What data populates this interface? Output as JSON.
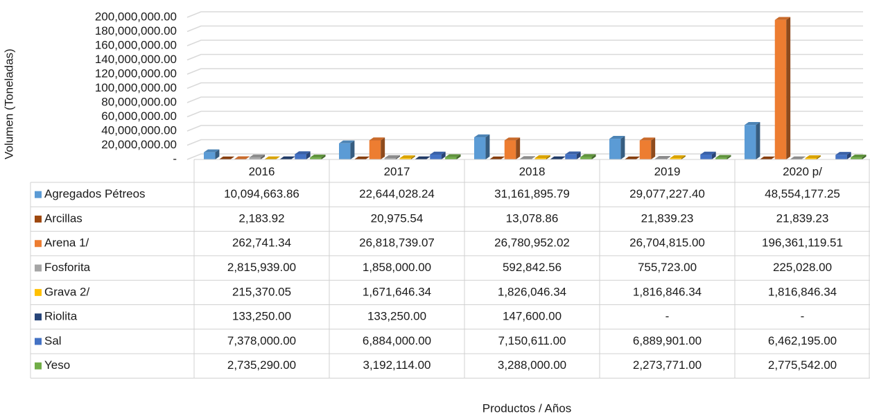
{
  "chart_data": {
    "type": "bar3d",
    "y_axis_label": "Volumen (Toneladas)",
    "x_axis_label": "Productos / Años",
    "categories": [
      "2016",
      "2017",
      "2018",
      "2019",
      "2020 p/"
    ],
    "ylim": [
      0,
      200000000
    ],
    "yticks": [
      {
        "value": 0,
        "label": "-"
      },
      {
        "value": 20000000,
        "label": "20,000,000.00"
      },
      {
        "value": 40000000,
        "label": "40,000,000.00"
      },
      {
        "value": 60000000,
        "label": "60,000,000.00"
      },
      {
        "value": 80000000,
        "label": "80,000,000.00"
      },
      {
        "value": 100000000,
        "label": "100,000,000.00"
      },
      {
        "value": 120000000,
        "label": "120,000,000.00"
      },
      {
        "value": 140000000,
        "label": "140,000,000.00"
      },
      {
        "value": 160000000,
        "label": "160,000,000.00"
      },
      {
        "value": 180000000,
        "label": "180,000,000.00"
      },
      {
        "value": 200000000,
        "label": "200,000,000.00"
      }
    ],
    "grid": true,
    "series": [
      {
        "name": "Agregados Pétreos",
        "color": "#5b9bd5",
        "values": [
          10094663.86,
          22644028.24,
          31161895.79,
          29077227.4,
          48554177.25
        ],
        "value_labels": [
          "10,094,663.86",
          "22,644,028.24",
          "31,161,895.79",
          "29,077,227.40",
          "48,554,177.25"
        ]
      },
      {
        "name": "Arcillas",
        "color": "#9e480e",
        "values": [
          2183.92,
          20975.54,
          13078.86,
          21839.23,
          21839.23
        ],
        "value_labels": [
          "2,183.92",
          "20,975.54",
          "13,078.86",
          "21,839.23",
          "21,839.23"
        ]
      },
      {
        "name": "Arena 1/",
        "color": "#ed7d31",
        "values": [
          262741.34,
          26818739.07,
          26780952.02,
          26704815.0,
          196361119.51
        ],
        "value_labels": [
          "262,741.34",
          "26,818,739.07",
          "26,780,952.02",
          "26,704,815.00",
          "196,361,119.51"
        ]
      },
      {
        "name": "Fosforita",
        "color": "#a5a5a5",
        "values": [
          2815939.0,
          1858000.0,
          592842.56,
          755723.0,
          225028.0
        ],
        "value_labels": [
          "2,815,939.00",
          "1,858,000.00",
          "592,842.56",
          "755,723.00",
          "225,028.00"
        ]
      },
      {
        "name": "Grava 2/",
        "color": "#ffc000",
        "values": [
          215370.05,
          1671646.34,
          1826046.34,
          1816846.34,
          1816846.34
        ],
        "value_labels": [
          "215,370.05",
          "1,671,646.34",
          "1,826,046.34",
          "1,816,846.34",
          "1,816,846.34"
        ]
      },
      {
        "name": "Riolita",
        "color": "#264478",
        "values": [
          133250.0,
          133250.0,
          147600.0,
          null,
          null
        ],
        "value_labels": [
          "133,250.00",
          "133,250.00",
          "147,600.00",
          "-",
          "-"
        ]
      },
      {
        "name": "Sal",
        "color": "#4472c4",
        "values": [
          7378000.0,
          6884000.0,
          7150611.0,
          6889901.0,
          6462195.0
        ],
        "value_labels": [
          "7,378,000.00",
          "6,884,000.00",
          "7,150,611.00",
          "6,889,901.00",
          "6,462,195.00"
        ]
      },
      {
        "name": "Yeso",
        "color": "#70ad47",
        "values": [
          2735290.0,
          3192114.0,
          3288000.0,
          2273771.0,
          2775542.0
        ],
        "value_labels": [
          "2,735,290.00",
          "3,192,114.00",
          "3,288,000.00",
          "2,273,771.00",
          "2,775,542.00"
        ]
      }
    ]
  }
}
